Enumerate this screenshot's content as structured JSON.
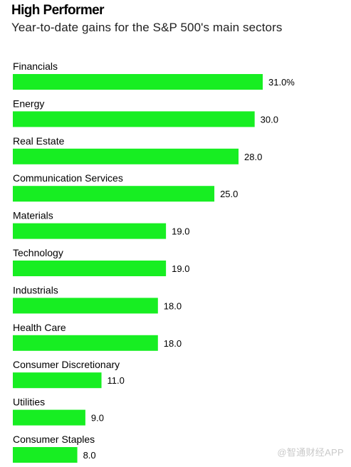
{
  "header": {
    "title": "High Performer",
    "subtitle": "Year-to-date gains for the S&P 500's main sectors"
  },
  "watermark": "@智通财经APP",
  "colors": {
    "bar": "#17ee22",
    "text": "#000000",
    "watermark": "#c9c9c9"
  },
  "chart_data": {
    "type": "bar",
    "orientation": "horizontal",
    "title": "High Performer",
    "subtitle": "Year-to-date gains for the S&P 500's main sectors",
    "categories": [
      "Financials",
      "Energy",
      "Real Estate",
      "Communication Services",
      "Materials",
      "Technology",
      "Industrials",
      "Health Care",
      "Consumer Discretionary",
      "Utilities",
      "Consumer Staples"
    ],
    "values": [
      31.0,
      30.0,
      28.0,
      25.0,
      19.0,
      19.0,
      18.0,
      18.0,
      11.0,
      9.0,
      8.0
    ],
    "value_labels": [
      "31.0%",
      "30.0",
      "28.0",
      "25.0",
      "19.0",
      "19.0",
      "18.0",
      "18.0",
      "11.0",
      "9.0",
      "8.0"
    ],
    "xlim": [
      0,
      31
    ],
    "grid": false,
    "legend": "none"
  }
}
